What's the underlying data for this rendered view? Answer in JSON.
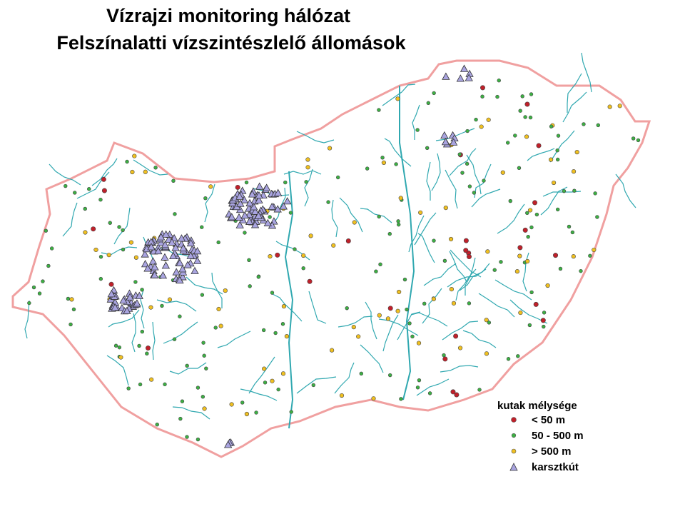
{
  "title": {
    "line1": "Vízrajzi monitoring hálózat",
    "line2": "Felszínalatti vízszintészlelő állomások"
  },
  "legend": {
    "title": "kutak mélysége",
    "items": [
      {
        "label": "< 50 m",
        "symbol": "dot",
        "color": "#c0202a"
      },
      {
        "label": "50 - 500 m",
        "symbol": "dot",
        "color": "#3cb043"
      },
      {
        "label": "> 500 m",
        "symbol": "dot",
        "color": "#f0c020"
      },
      {
        "label": "karsztkút",
        "symbol": "triangle",
        "color": "#a9a4e0"
      }
    ]
  },
  "colors": {
    "border": "#f0a0a0",
    "rivers": "#30a8b0",
    "background": "#ffffff"
  }
}
